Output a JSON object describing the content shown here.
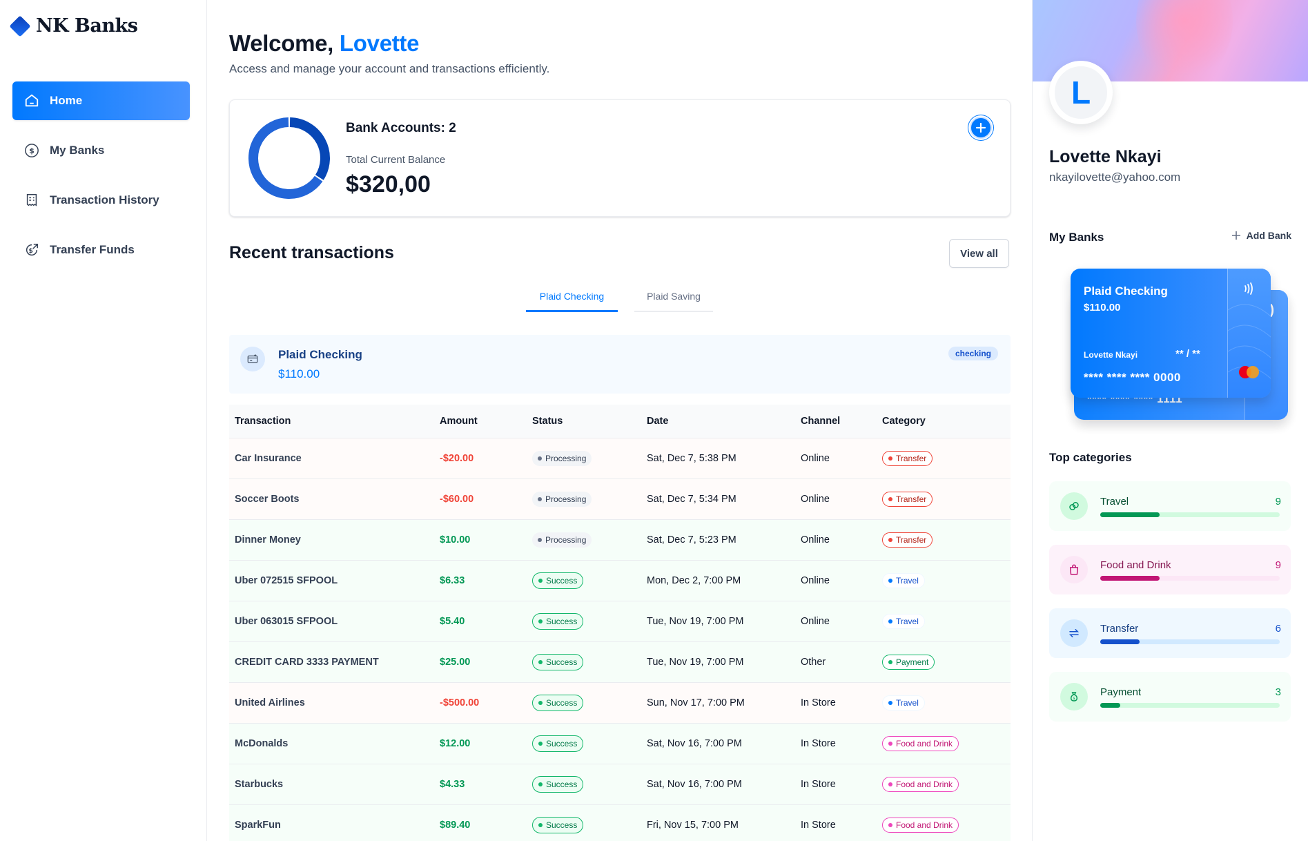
{
  "brand": {
    "name": "NK Banks"
  },
  "nav": [
    {
      "label": "Home",
      "icon": "home-icon",
      "active": true
    },
    {
      "label": "My Banks",
      "icon": "dollar-circle-icon",
      "active": false
    },
    {
      "label": "Transaction History",
      "icon": "receipt-icon",
      "active": false
    },
    {
      "label": "Transfer Funds",
      "icon": "money-send-icon",
      "active": false
    }
  ],
  "header": {
    "greeting": "Welcome,",
    "user_first_name": "Lovette",
    "subtitle": "Access and manage your account and transactions efficiently."
  },
  "balance": {
    "bank_accounts_label": "Bank Accounts: 2",
    "total_label": "Total Current Balance",
    "total_value": "$320,00",
    "accounts": [
      {
        "name": "Plaid Checking",
        "amount": 110.0
      },
      {
        "name": "Plaid Saving",
        "amount": 210.0
      }
    ],
    "colors": [
      "#0747b6",
      "#2265d8",
      "#2f91fa"
    ]
  },
  "recent": {
    "title": "Recent transactions",
    "view_all": "View all",
    "tabs": [
      "Plaid Checking",
      "Plaid Saving"
    ],
    "active_tab": 0,
    "account": {
      "name": "Plaid Checking",
      "balance": "$110.00",
      "type": "checking"
    },
    "columns": [
      "Transaction",
      "Amount",
      "Status",
      "Date",
      "Channel",
      "Category"
    ],
    "rows": [
      {
        "name": "Car Insurance",
        "amount": "-$20.00",
        "kind": "debit",
        "status": "Processing",
        "date": "Sat, Dec 7, 5:38 PM",
        "channel": "Online",
        "category": "Transfer"
      },
      {
        "name": "Soccer Boots",
        "amount": "-$60.00",
        "kind": "debit",
        "status": "Processing",
        "date": "Sat, Dec 7, 5:34 PM",
        "channel": "Online",
        "category": "Transfer"
      },
      {
        "name": "Dinner Money",
        "amount": "$10.00",
        "kind": "credit",
        "status": "Processing",
        "date": "Sat, Dec 7, 5:23 PM",
        "channel": "Online",
        "category": "Transfer"
      },
      {
        "name": "Uber 072515 SFPOOL",
        "amount": "$6.33",
        "kind": "credit",
        "status": "Success",
        "date": "Mon, Dec 2, 7:00 PM",
        "channel": "Online",
        "category": "Travel"
      },
      {
        "name": "Uber 063015 SFPOOL",
        "amount": "$5.40",
        "kind": "credit",
        "status": "Success",
        "date": "Tue, Nov 19, 7:00 PM",
        "channel": "Online",
        "category": "Travel"
      },
      {
        "name": "CREDIT CARD 3333 PAYMENT",
        "amount": "$25.00",
        "kind": "credit",
        "status": "Success",
        "date": "Tue, Nov 19, 7:00 PM",
        "channel": "Other",
        "category": "Payment"
      },
      {
        "name": "United Airlines",
        "amount": "-$500.00",
        "kind": "debit",
        "status": "Success",
        "date": "Sun, Nov 17, 7:00 PM",
        "channel": "In Store",
        "category": "Travel"
      },
      {
        "name": "McDonalds",
        "amount": "$12.00",
        "kind": "credit",
        "status": "Success",
        "date": "Sat, Nov 16, 7:00 PM",
        "channel": "In Store",
        "category": "Food and Drink"
      },
      {
        "name": "Starbucks",
        "amount": "$4.33",
        "kind": "credit",
        "status": "Success",
        "date": "Sat, Nov 16, 7:00 PM",
        "channel": "In Store",
        "category": "Food and Drink"
      },
      {
        "name": "SparkFun",
        "amount": "$89.40",
        "kind": "credit",
        "status": "Success",
        "date": "Fri, Nov 15, 7:00 PM",
        "channel": "In Store",
        "category": "Food and Drink"
      }
    ]
  },
  "profile": {
    "initial": "L",
    "name": "Lovette Nkayi",
    "email": "nkayilovette@yahoo.com"
  },
  "my_banks": {
    "title": "My Banks",
    "add_label": "Add Bank",
    "card": {
      "bank": "Plaid Checking",
      "amount": "$110.00",
      "holder": "Lovette Nkayi",
      "expiry": "** / **",
      "number": "**** **** **** 0000"
    },
    "back_card_number": "**** **** **** 1111"
  },
  "top_categories": {
    "title": "Top categories",
    "items": [
      {
        "name": "Travel",
        "count": "9",
        "progress": 0.33,
        "icon": "link-icon",
        "bg": "#f6fef9",
        "track": "#d1fadf",
        "fill": "#039855",
        "text": "#054f31",
        "circle": "#d1fadf",
        "iconColor": "#039855"
      },
      {
        "name": "Food and Drink",
        "count": "9",
        "progress": 0.33,
        "icon": "bag-icon",
        "bg": "#fdf2fa",
        "track": "#fce7f6",
        "fill": "#c11574",
        "text": "#851651",
        "circle": "#fce7f6",
        "iconColor": "#c11574"
      },
      {
        "name": "Transfer",
        "count": "6",
        "progress": 0.22,
        "icon": "swap-icon",
        "bg": "#eff8ff",
        "track": "#d1e9ff",
        "fill": "#1551cc",
        "text": "#194185",
        "circle": "#d1e9ff",
        "iconColor": "#1551cc"
      },
      {
        "name": "Payment",
        "count": "3",
        "progress": 0.11,
        "icon": "money-bag-icon",
        "bg": "#f6fef9",
        "track": "#d1fadf",
        "fill": "#039855",
        "text": "#054f31",
        "circle": "#d1fadf",
        "iconColor": "#039855"
      }
    ]
  }
}
